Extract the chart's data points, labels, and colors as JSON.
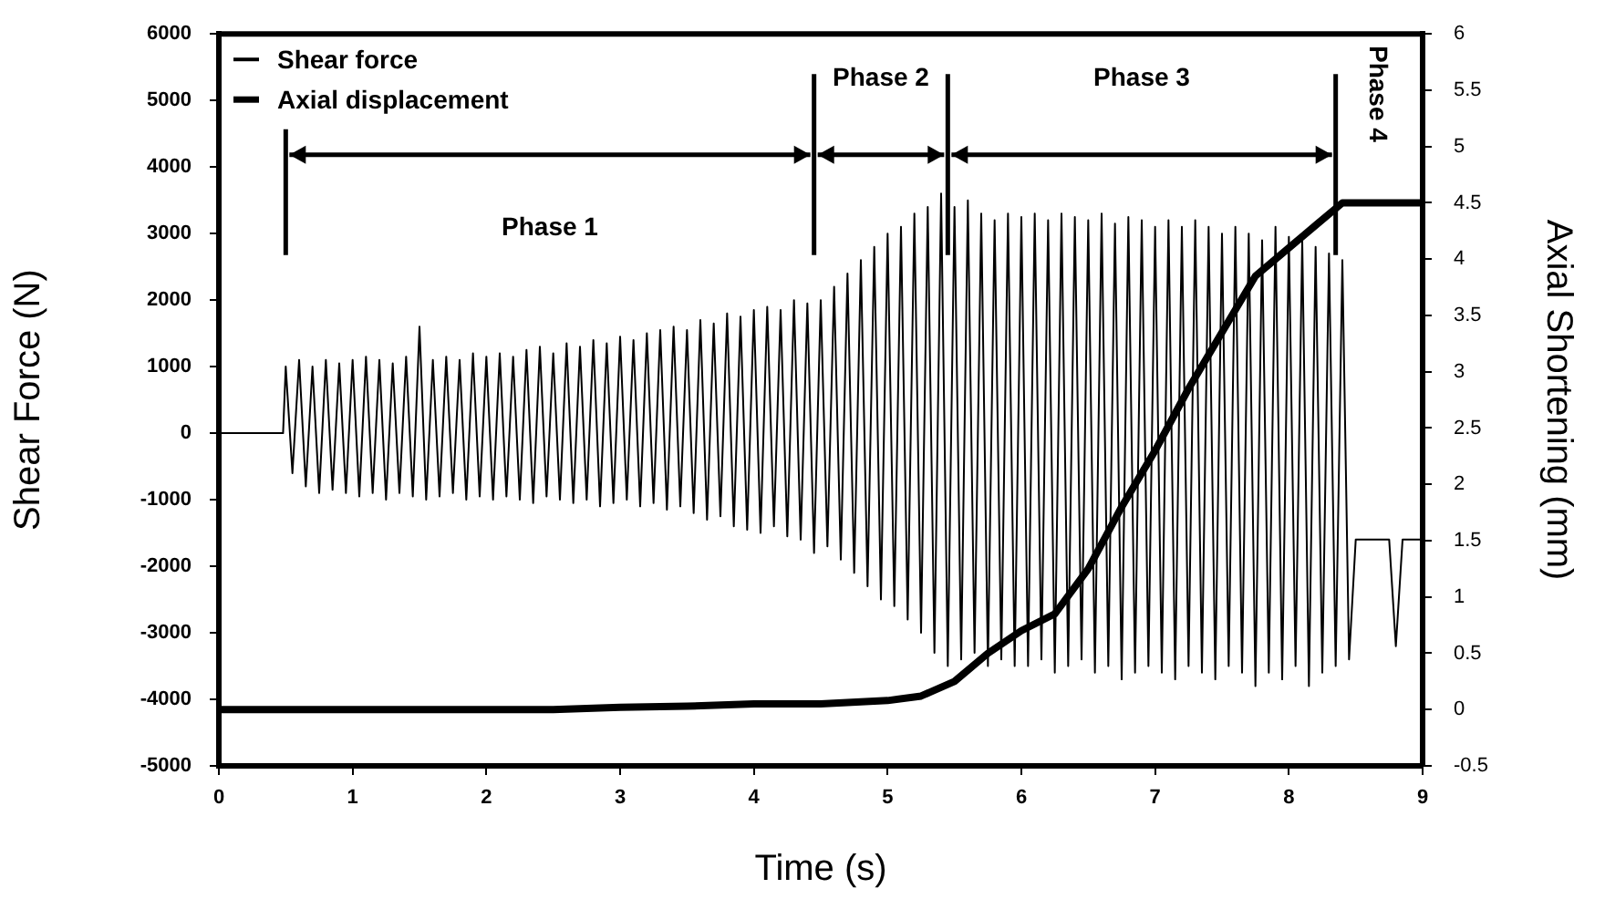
{
  "chart_data": {
    "type": "line",
    "xlabel": "Time (s)",
    "ylabel": "Shear Force (N)",
    "y2label": "Axial Shortening (mm)",
    "xlim": [
      0,
      9
    ],
    "xticks": [
      0,
      1,
      2,
      3,
      4,
      5,
      6,
      7,
      8,
      9
    ],
    "ylim": [
      -5000,
      6000
    ],
    "yticks": [
      -5000,
      -4000,
      -3000,
      -2000,
      -1000,
      0,
      1000,
      2000,
      3000,
      4000,
      5000,
      6000
    ],
    "y2lim": [
      -0.5,
      6
    ],
    "y2ticks": [
      -0.5,
      0,
      0.5,
      1,
      1.5,
      2,
      2.5,
      3,
      3.5,
      4,
      4.5,
      5,
      5.5,
      6
    ],
    "grid": false,
    "legend": "top left",
    "marker": "none",
    "line_style": "solid",
    "series": [
      {
        "name": "Shear force",
        "color": "#000000",
        "x": [
          0,
          0.48,
          0.5,
          0.55,
          0.6,
          0.65,
          0.7,
          0.75,
          0.8,
          0.85,
          0.9,
          0.95,
          1.0,
          1.05,
          1.1,
          1.15,
          1.2,
          1.25,
          1.3,
          1.35,
          1.4,
          1.45,
          1.5,
          1.55,
          1.6,
          1.65,
          1.7,
          1.75,
          1.8,
          1.85,
          1.9,
          1.95,
          2.0,
          2.05,
          2.1,
          2.15,
          2.2,
          2.25,
          2.3,
          2.35,
          2.4,
          2.45,
          2.5,
          2.55,
          2.6,
          2.65,
          2.7,
          2.75,
          2.8,
          2.85,
          2.9,
          2.95,
          3.0,
          3.05,
          3.1,
          3.15,
          3.2,
          3.25,
          3.3,
          3.35,
          3.4,
          3.45,
          3.5,
          3.55,
          3.6,
          3.65,
          3.7,
          3.75,
          3.8,
          3.85,
          3.9,
          3.95,
          4.0,
          4.05,
          4.1,
          4.15,
          4.2,
          4.25,
          4.3,
          4.35,
          4.4,
          4.45,
          4.5,
          4.55,
          4.6,
          4.65,
          4.7,
          4.75,
          4.8,
          4.85,
          4.9,
          4.95,
          5.0,
          5.05,
          5.1,
          5.15,
          5.2,
          5.25,
          5.3,
          5.35,
          5.4,
          5.45,
          5.5,
          5.55,
          5.6,
          5.65,
          5.7,
          5.75,
          5.8,
          5.85,
          5.9,
          5.95,
          6.0,
          6.05,
          6.1,
          6.15,
          6.2,
          6.25,
          6.3,
          6.35,
          6.4,
          6.45,
          6.5,
          6.55,
          6.6,
          6.65,
          6.7,
          6.75,
          6.8,
          6.85,
          6.9,
          6.95,
          7.0,
          7.05,
          7.1,
          7.15,
          7.2,
          7.25,
          7.3,
          7.35,
          7.4,
          7.45,
          7.5,
          7.55,
          7.6,
          7.65,
          7.7,
          7.75,
          7.8,
          7.85,
          7.9,
          7.95,
          8.0,
          8.05,
          8.1,
          8.15,
          8.2,
          8.25,
          8.3,
          8.35,
          8.4,
          8.45,
          8.5,
          8.75,
          8.8,
          8.85,
          9
        ],
        "values": [
          0,
          0,
          1000,
          -600,
          1100,
          -800,
          1000,
          -900,
          1100,
          -850,
          1050,
          -900,
          1100,
          -950,
          1150,
          -900,
          1100,
          -1000,
          1050,
          -900,
          1150,
          -950,
          1600,
          -1000,
          1100,
          -950,
          1150,
          -900,
          1100,
          -1000,
          1200,
          -950,
          1150,
          -1000,
          1200,
          -950,
          1150,
          -1000,
          1250,
          -1050,
          1300,
          -950,
          1200,
          -1000,
          1350,
          -1050,
          1300,
          -1000,
          1400,
          -1100,
          1350,
          -1050,
          1450,
          -1000,
          1400,
          -1100,
          1500,
          -1050,
          1550,
          -1150,
          1600,
          -1100,
          1550,
          -1200,
          1700,
          -1300,
          1650,
          -1250,
          1800,
          -1400,
          1750,
          -1450,
          1850,
          -1500,
          1900,
          -1400,
          1850,
          -1550,
          2000,
          -1600,
          1950,
          -1800,
          2000,
          -1700,
          2200,
          -1900,
          2400,
          -2100,
          2600,
          -2300,
          2800,
          -2500,
          3000,
          -2600,
          3100,
          -2800,
          3300,
          -3000,
          3400,
          -3300,
          3600,
          -3500,
          3400,
          -3400,
          3500,
          -3300,
          3300,
          -3500,
          3200,
          -3400,
          3300,
          -3500,
          3250,
          -3500,
          3300,
          -3400,
          3200,
          -3600,
          3300,
          -3500,
          3250,
          -3400,
          3200,
          -3600,
          3300,
          -3500,
          3150,
          -3700,
          3250,
          -3600,
          3200,
          -3500,
          3100,
          -3600,
          3200,
          -3700,
          3100,
          -3500,
          3200,
          -3600,
          3100,
          -3700,
          3000,
          -3500,
          3100,
          -3600,
          3000,
          -3800,
          2900,
          -3600,
          3100,
          -3700,
          2950,
          -3500,
          2900,
          -3800,
          2800,
          -3600,
          2700,
          -3500,
          2600,
          -3400,
          -1600,
          -1600,
          -3200,
          -1600,
          -1600
        ]
      },
      {
        "name": "Axial displacement",
        "color": "#000000",
        "axis": "y2",
        "x": [
          0,
          0.5,
          1,
          1.5,
          2,
          2.5,
          3,
          3.5,
          4,
          4.5,
          5,
          5.25,
          5.5,
          5.75,
          6,
          6.25,
          6.5,
          6.75,
          7,
          7.25,
          7.5,
          7.75,
          8,
          8.2,
          8.4,
          9
        ],
        "values": [
          0,
          0,
          0,
          0,
          0,
          0,
          0.02,
          0.03,
          0.05,
          0.05,
          0.08,
          0.12,
          0.25,
          0.5,
          0.7,
          0.85,
          1.25,
          1.8,
          2.3,
          2.85,
          3.35,
          3.85,
          4.1,
          4.3,
          4.5,
          4.5
        ]
      }
    ],
    "ref_lines": [
      {
        "axis": "x",
        "value": 0.5,
        "label": null
      },
      {
        "axis": "x",
        "value": 4.45,
        "label": null
      },
      {
        "axis": "x",
        "value": 5.45,
        "label": null
      },
      {
        "axis": "x",
        "value": 8.35,
        "label": null
      }
    ],
    "annotations": [
      "Phase 1",
      "Phase 2",
      "Phase 3",
      "Phase 4"
    ]
  }
}
